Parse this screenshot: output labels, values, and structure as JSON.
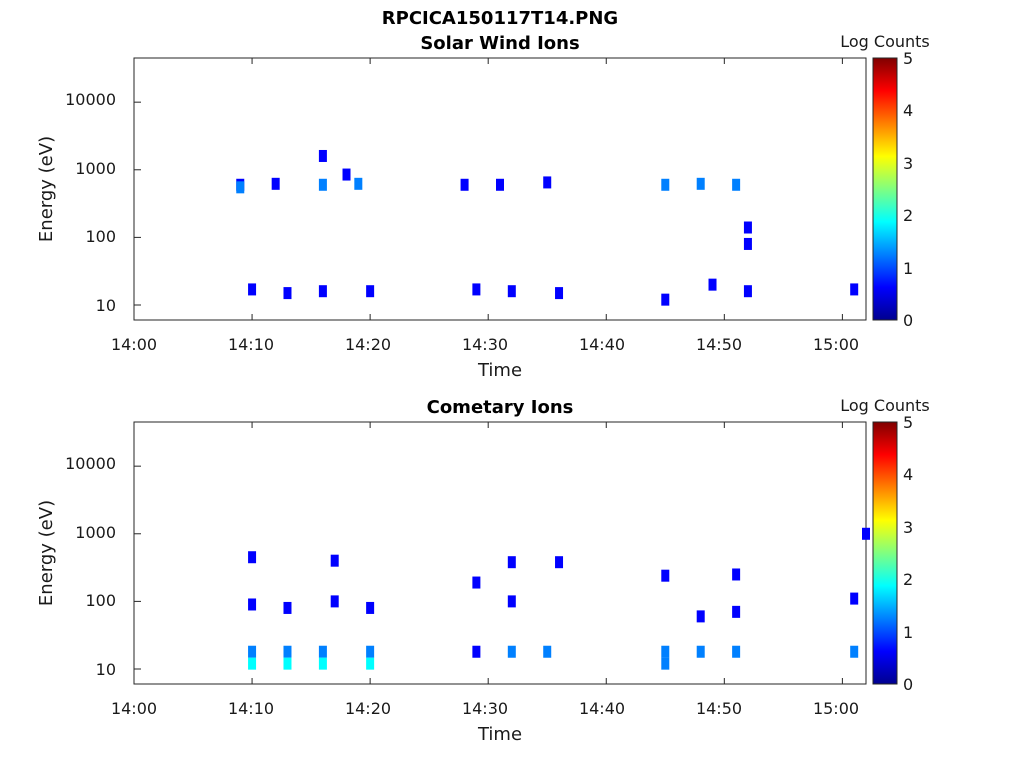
{
  "figure_title": "RPCICA150117T14.PNG",
  "colormap": [
    "#00008f",
    "#0000ff",
    "#0080ff",
    "#00ffff",
    "#80ff80",
    "#ffff00",
    "#ff8000",
    "#ff0000",
    "#800000"
  ],
  "chart_data": [
    {
      "type": "heatmap",
      "title": "Solar Wind Ions",
      "xlabel": "Time",
      "ylabel": "Energy (eV)",
      "x_ticks": [
        "14:00",
        "14:10",
        "14:20",
        "14:30",
        "14:40",
        "14:50",
        "15:00"
      ],
      "y_ticks": [
        "10",
        "100",
        "1000",
        "10000"
      ],
      "y_scale": "log",
      "xlim": [
        "14:00",
        "15:02"
      ],
      "ylim": [
        6,
        45000
      ],
      "colorbar": {
        "label": "Log Counts",
        "ticks": [
          "0",
          "1",
          "2",
          "3",
          "4",
          "5"
        ],
        "range": [
          0,
          5
        ]
      },
      "points": [
        {
          "t": "14:09",
          "e": 600,
          "v": 0.8
        },
        {
          "t": "14:09",
          "e": 550,
          "v": 1.2
        },
        {
          "t": "14:12",
          "e": 620,
          "v": 0.9
        },
        {
          "t": "14:16",
          "e": 600,
          "v": 1.3
        },
        {
          "t": "14:16",
          "e": 1600,
          "v": 0.5
        },
        {
          "t": "14:18",
          "e": 850,
          "v": 0.4
        },
        {
          "t": "14:19",
          "e": 620,
          "v": 1.0
        },
        {
          "t": "14:28",
          "e": 600,
          "v": 0.5
        },
        {
          "t": "14:31",
          "e": 600,
          "v": 0.5
        },
        {
          "t": "14:35",
          "e": 650,
          "v": 0.6
        },
        {
          "t": "14:45",
          "e": 600,
          "v": 1.1
        },
        {
          "t": "14:48",
          "e": 620,
          "v": 1.3
        },
        {
          "t": "14:51",
          "e": 600,
          "v": 1.2
        },
        {
          "t": "14:52",
          "e": 140,
          "v": 0.4
        },
        {
          "t": "14:52",
          "e": 80,
          "v": 0.4
        },
        {
          "t": "14:10",
          "e": 17,
          "v": 0.6
        },
        {
          "t": "14:13",
          "e": 15,
          "v": 0.5
        },
        {
          "t": "14:16",
          "e": 16,
          "v": 0.5
        },
        {
          "t": "14:20",
          "e": 16,
          "v": 0.4
        },
        {
          "t": "14:29",
          "e": 17,
          "v": 0.5
        },
        {
          "t": "14:32",
          "e": 16,
          "v": 0.5
        },
        {
          "t": "14:36",
          "e": 15,
          "v": 0.4
        },
        {
          "t": "14:45",
          "e": 12,
          "v": 0.6
        },
        {
          "t": "14:49",
          "e": 20,
          "v": 0.5
        },
        {
          "t": "14:52",
          "e": 16,
          "v": 0.5
        },
        {
          "t": "15:01",
          "e": 17,
          "v": 0.5
        }
      ]
    },
    {
      "type": "heatmap",
      "title": "Cometary Ions",
      "xlabel": "Time",
      "ylabel": "Energy (eV)",
      "x_ticks": [
        "14:00",
        "14:10",
        "14:20",
        "14:30",
        "14:40",
        "14:50",
        "15:00"
      ],
      "y_ticks": [
        "10",
        "100",
        "1000",
        "10000"
      ],
      "y_scale": "log",
      "xlim": [
        "14:00",
        "15:02"
      ],
      "ylim": [
        6,
        45000
      ],
      "colorbar": {
        "label": "Log Counts",
        "ticks": [
          "0",
          "1",
          "2",
          "3",
          "4",
          "5"
        ],
        "range": [
          0,
          5
        ]
      },
      "points": [
        {
          "t": "14:10",
          "e": 18,
          "v": 1.3
        },
        {
          "t": "14:10",
          "e": 12,
          "v": 1.8
        },
        {
          "t": "14:10",
          "e": 90,
          "v": 0.5
        },
        {
          "t": "14:10",
          "e": 450,
          "v": 0.4
        },
        {
          "t": "14:13",
          "e": 18,
          "v": 1.2
        },
        {
          "t": "14:13",
          "e": 12,
          "v": 1.6
        },
        {
          "t": "14:13",
          "e": 80,
          "v": 0.5
        },
        {
          "t": "14:16",
          "e": 18,
          "v": 1.2
        },
        {
          "t": "14:16",
          "e": 12,
          "v": 1.7
        },
        {
          "t": "14:17",
          "e": 400,
          "v": 0.4
        },
        {
          "t": "14:17",
          "e": 100,
          "v": 0.4
        },
        {
          "t": "14:20",
          "e": 18,
          "v": 1.1
        },
        {
          "t": "14:20",
          "e": 12,
          "v": 1.6
        },
        {
          "t": "14:20",
          "e": 80,
          "v": 0.4
        },
        {
          "t": "14:29",
          "e": 18,
          "v": 0.9
        },
        {
          "t": "14:29",
          "e": 190,
          "v": 0.4
        },
        {
          "t": "14:32",
          "e": 18,
          "v": 1.0
        },
        {
          "t": "14:32",
          "e": 100,
          "v": 0.4
        },
        {
          "t": "14:32",
          "e": 380,
          "v": 0.4
        },
        {
          "t": "14:35",
          "e": 18,
          "v": 1.2
        },
        {
          "t": "14:36",
          "e": 380,
          "v": 0.4
        },
        {
          "t": "14:45",
          "e": 18,
          "v": 1.2
        },
        {
          "t": "14:45",
          "e": 12,
          "v": 1.5
        },
        {
          "t": "14:45",
          "e": 240,
          "v": 0.4
        },
        {
          "t": "14:48",
          "e": 18,
          "v": 1.3
        },
        {
          "t": "14:48",
          "e": 60,
          "v": 0.4
        },
        {
          "t": "14:51",
          "e": 18,
          "v": 1.3
        },
        {
          "t": "14:51",
          "e": 70,
          "v": 0.4
        },
        {
          "t": "14:51",
          "e": 250,
          "v": 0.4
        },
        {
          "t": "15:01",
          "e": 18,
          "v": 1.1
        },
        {
          "t": "15:01",
          "e": 110,
          "v": 0.4
        },
        {
          "t": "15:02",
          "e": 1000,
          "v": 0.4
        }
      ]
    }
  ]
}
